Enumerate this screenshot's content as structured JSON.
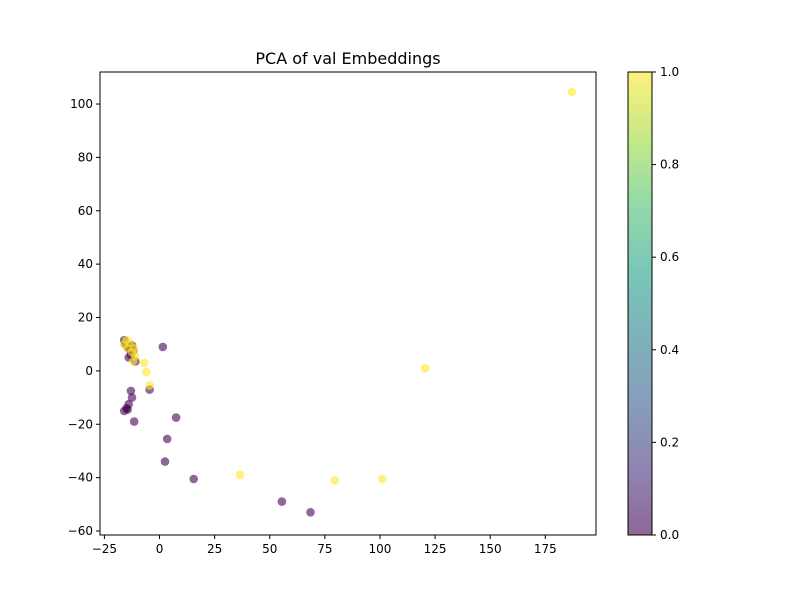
{
  "chart_data": {
    "type": "scatter",
    "title": "PCA of val Embeddings",
    "xlabel": "",
    "ylabel": "",
    "xlim": [
      -27,
      198
    ],
    "ylim": [
      -61.5,
      112
    ],
    "x_ticks": [
      -25,
      0,
      25,
      50,
      75,
      100,
      125,
      150,
      175
    ],
    "y_ticks": [
      -60,
      -40,
      -20,
      0,
      20,
      40,
      60,
      80,
      100
    ],
    "grid": false,
    "colorbar": {
      "min": 0.0,
      "max": 1.0,
      "ticks": [
        0.0,
        0.2,
        0.4,
        0.6,
        0.8,
        1.0
      ],
      "tick_labels": [
        "0.0",
        "0.2",
        "0.4",
        "0.6",
        "0.8",
        "1.0"
      ],
      "colormap": "viridis",
      "colors": [
        "#440154",
        "#46327e",
        "#365c8d",
        "#277f8e",
        "#1fa187",
        "#4ac16d",
        "#a0da39",
        "#fde725"
      ]
    },
    "point_alpha": 0.6,
    "points": [
      {
        "x": -16.0,
        "y": 11.5,
        "label": 0
      },
      {
        "x": -15.5,
        "y": 10.0,
        "label": 0
      },
      {
        "x": -14.5,
        "y": 9.0,
        "label": 0
      },
      {
        "x": -13.5,
        "y": 8.0,
        "label": 0
      },
      {
        "x": -12.5,
        "y": 9.5,
        "label": 0
      },
      {
        "x": -14.0,
        "y": 5.0,
        "label": 0
      },
      {
        "x": -13.0,
        "y": 6.0,
        "label": 0
      },
      {
        "x": -12.0,
        "y": 7.5,
        "label": 0
      },
      {
        "x": -11.0,
        "y": 3.5,
        "label": 0
      },
      {
        "x": 1.5,
        "y": 9.0,
        "label": 0
      },
      {
        "x": -4.5,
        "y": -7.0,
        "label": 0
      },
      {
        "x": -13.0,
        "y": -7.5,
        "label": 0
      },
      {
        "x": -12.5,
        "y": -10.0,
        "label": 0
      },
      {
        "x": -14.0,
        "y": -12.5,
        "label": 0
      },
      {
        "x": -15.0,
        "y": -14.0,
        "label": 0
      },
      {
        "x": -16.0,
        "y": -15.0,
        "label": 0
      },
      {
        "x": -14.5,
        "y": -14.5,
        "label": 0
      },
      {
        "x": -11.5,
        "y": -19.0,
        "label": 0
      },
      {
        "x": 7.5,
        "y": -17.5,
        "label": 0
      },
      {
        "x": 3.5,
        "y": -25.5,
        "label": 0
      },
      {
        "x": 2.5,
        "y": -34.0,
        "label": 0
      },
      {
        "x": 15.5,
        "y": -40.5,
        "label": 0
      },
      {
        "x": 55.5,
        "y": -49.0,
        "label": 0
      },
      {
        "x": 68.5,
        "y": -53.0,
        "label": 0
      },
      {
        "x": -16.0,
        "y": 10.0,
        "label": 1
      },
      {
        "x": -15.0,
        "y": 11.5,
        "label": 1
      },
      {
        "x": -14.5,
        "y": 8.5,
        "label": 1
      },
      {
        "x": -13.5,
        "y": 10.5,
        "label": 1
      },
      {
        "x": -12.5,
        "y": 7.0,
        "label": 1
      },
      {
        "x": -11.5,
        "y": 8.5,
        "label": 1
      },
      {
        "x": -11.0,
        "y": 5.5,
        "label": 1
      },
      {
        "x": -12.0,
        "y": 3.5,
        "label": 1
      },
      {
        "x": -7.0,
        "y": 3.0,
        "label": 1
      },
      {
        "x": -6.0,
        "y": -0.5,
        "label": 1
      },
      {
        "x": -4.5,
        "y": -5.5,
        "label": 1
      },
      {
        "x": 36.5,
        "y": -39.0,
        "label": 1
      },
      {
        "x": 79.5,
        "y": -41.0,
        "label": 1
      },
      {
        "x": 101.0,
        "y": -40.5,
        "label": 1
      },
      {
        "x": 120.5,
        "y": 1.0,
        "label": 1
      },
      {
        "x": 187.0,
        "y": 104.5,
        "label": 1
      }
    ]
  }
}
